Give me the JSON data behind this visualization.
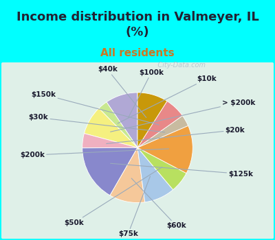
{
  "title": "Income distribution in Valmeyer, IL\n(%)",
  "subtitle": "All residents",
  "background_color": "#00FFFF",
  "chart_bg_top": "#d8f0e8",
  "chart_bg_bottom": "#e8faf0",
  "labels": [
    "$100k",
    "$10k",
    "> $200k",
    "$20k",
    "$125k",
    "$60k",
    "$75k",
    "$50k",
    "$200k",
    "$30k",
    "$150k",
    "$40k"
  ],
  "values": [
    10.0,
    3.0,
    9.0,
    4.5,
    17.5,
    11.0,
    9.5,
    6.5,
    15.0,
    3.5,
    6.5,
    9.5
  ],
  "colors": [
    "#b0a8d5",
    "#c8e890",
    "#f5f080",
    "#f0b0c0",
    "#8888cc",
    "#f5c89a",
    "#a8c8e8",
    "#b8e060",
    "#f0a040",
    "#c8bba0",
    "#e88888",
    "#c8980a"
  ],
  "startangle": 90,
  "label_fontsize": 7.5,
  "title_fontsize": 13,
  "subtitle_fontsize": 11,
  "subtitle_color": "#cc7722",
  "title_color": "#222233",
  "watermark": "   City-Data.com"
}
